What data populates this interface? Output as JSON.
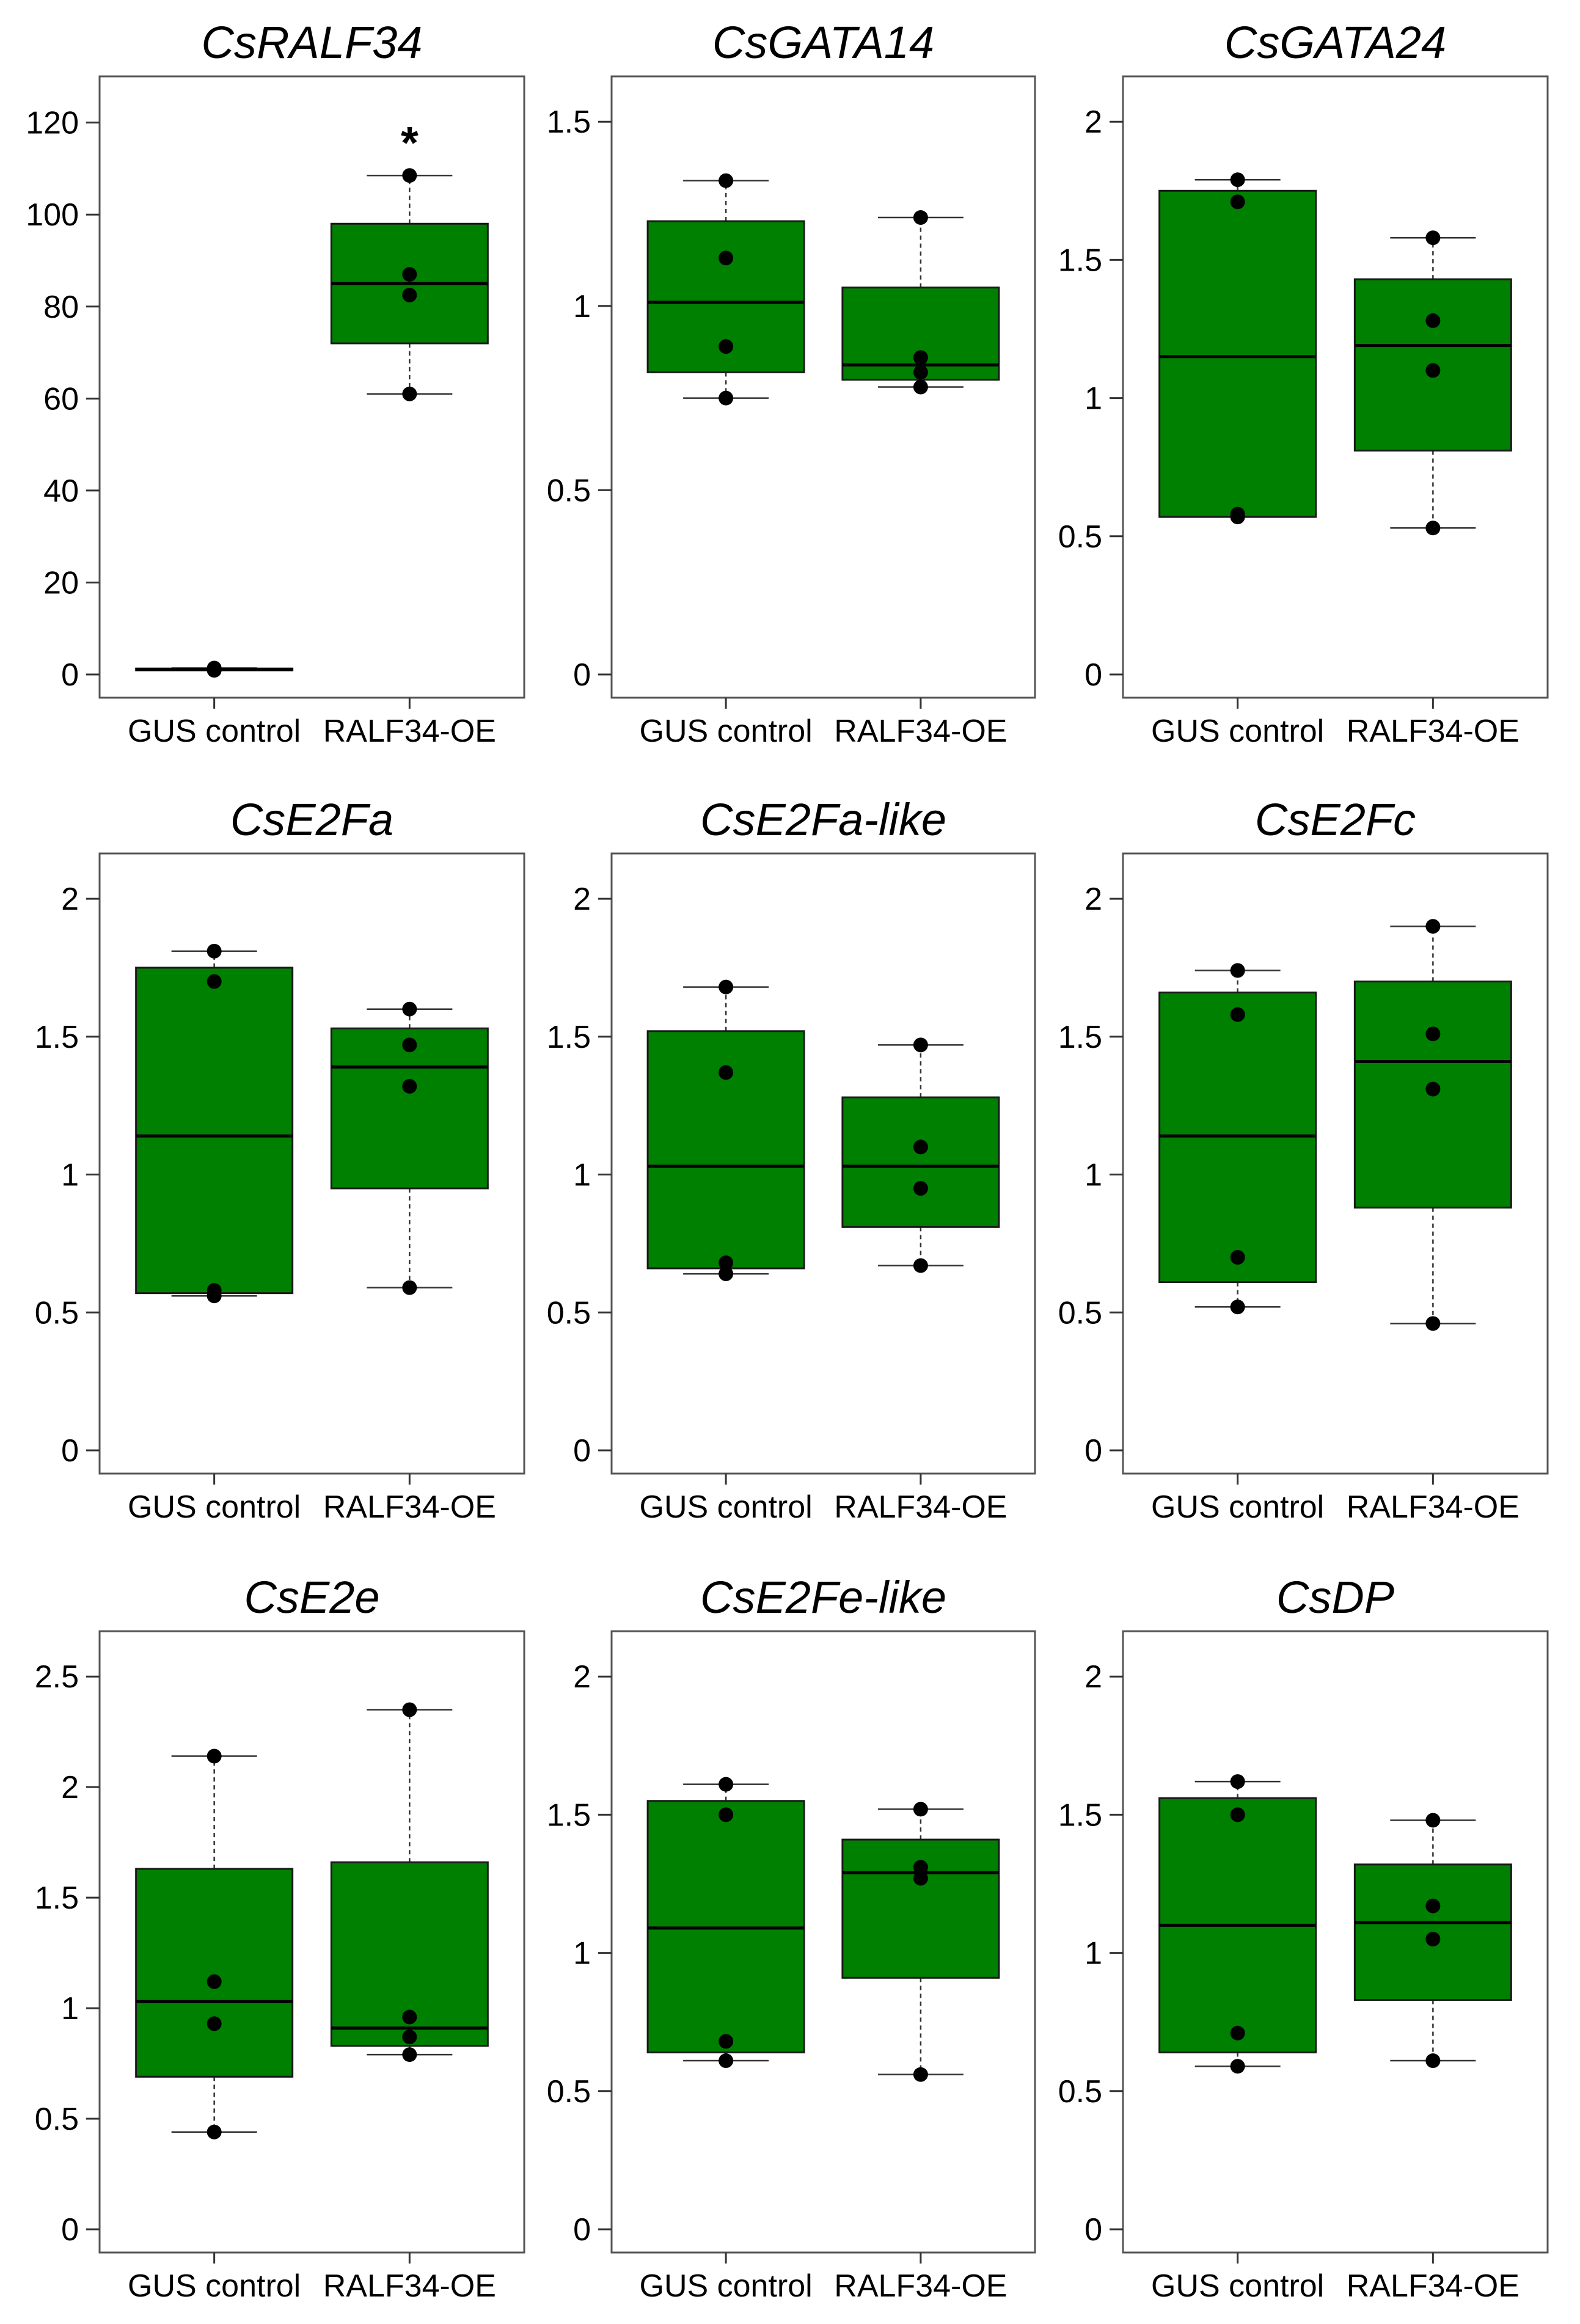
{
  "colors": {
    "box_fill": "#008000",
    "box_stroke": "#1a1a1a",
    "point": "#000000",
    "frame": "#555555"
  },
  "chart_data": [
    {
      "type": "box",
      "title": "CsRALF34",
      "categories": [
        "GUS control",
        "RALF34-OE"
      ],
      "ylim": [
        0,
        125
      ],
      "yticks": [
        0,
        20,
        40,
        60,
        80,
        100,
        120
      ],
      "yticklabels": [
        "0",
        "20",
        "40",
        "60",
        "80",
        "100",
        "120"
      ],
      "boxes": [
        {
          "whisker_low": 0.9,
          "q1": 0.9,
          "median": 1.1,
          "q3": 1.3,
          "whisker_high": 1.4,
          "points": [
            0.9,
            1.0,
            1.2,
            1.4
          ]
        },
        {
          "whisker_low": 61,
          "q1": 72,
          "median": 85,
          "q3": 98,
          "whisker_high": 108.5,
          "points": [
            61,
            82.5,
            87,
            108.5
          ]
        }
      ],
      "significance": {
        "index": 1,
        "label": "*"
      }
    },
    {
      "type": "box",
      "title": "CsGATA14",
      "categories": [
        "GUS control",
        "RALF34-OE"
      ],
      "ylim": [
        0,
        1.56
      ],
      "yticks": [
        0,
        0.5,
        1,
        1.5
      ],
      "yticklabels": [
        "0",
        "0.5",
        "1",
        "1.5"
      ],
      "boxes": [
        {
          "whisker_low": 0.75,
          "q1": 0.82,
          "median": 1.01,
          "q3": 1.23,
          "whisker_high": 1.34,
          "points": [
            0.75,
            0.89,
            1.13,
            1.34
          ]
        },
        {
          "whisker_low": 0.78,
          "q1": 0.8,
          "median": 0.84,
          "q3": 1.05,
          "whisker_high": 1.24,
          "points": [
            0.78,
            0.82,
            0.86,
            1.24
          ]
        }
      ]
    },
    {
      "type": "box",
      "title": "CsGATA24",
      "categories": [
        "GUS control",
        "RALF34-OE"
      ],
      "ylim": [
        0,
        2.08
      ],
      "yticks": [
        0,
        0.5,
        1,
        1.5,
        2
      ],
      "yticklabels": [
        "0",
        "0.5",
        "1",
        "1.5",
        "2"
      ],
      "boxes": [
        {
          "whisker_low": 0.57,
          "q1": 0.57,
          "median": 1.15,
          "q3": 1.75,
          "whisker_high": 1.79,
          "points": [
            0.57,
            0.58,
            1.71,
            1.79
          ]
        },
        {
          "whisker_low": 0.53,
          "q1": 0.81,
          "median": 1.19,
          "q3": 1.43,
          "whisker_high": 1.58,
          "points": [
            0.53,
            1.1,
            1.28,
            1.58
          ]
        }
      ]
    },
    {
      "type": "box",
      "title": "CsE2Fa",
      "categories": [
        "GUS control",
        "RALF34-OE"
      ],
      "ylim": [
        0,
        2.08
      ],
      "yticks": [
        0,
        0.5,
        1,
        1.5,
        2
      ],
      "yticklabels": [
        "0",
        "0.5",
        "1",
        "1.5",
        "2"
      ],
      "boxes": [
        {
          "whisker_low": 0.56,
          "q1": 0.57,
          "median": 1.14,
          "q3": 1.75,
          "whisker_high": 1.81,
          "points": [
            0.56,
            0.58,
            1.7,
            1.81
          ]
        },
        {
          "whisker_low": 0.59,
          "q1": 0.95,
          "median": 1.39,
          "q3": 1.53,
          "whisker_high": 1.6,
          "points": [
            0.59,
            1.32,
            1.47,
            1.6
          ]
        }
      ]
    },
    {
      "type": "box",
      "title": "CsE2Fa-like",
      "categories": [
        "GUS control",
        "RALF34-OE"
      ],
      "ylim": [
        0,
        2.08
      ],
      "yticks": [
        0,
        0.5,
        1,
        1.5,
        2
      ],
      "yticklabels": [
        "0",
        "0.5",
        "1",
        "1.5",
        "2"
      ],
      "boxes": [
        {
          "whisker_low": 0.64,
          "q1": 0.66,
          "median": 1.03,
          "q3": 1.52,
          "whisker_high": 1.68,
          "points": [
            0.64,
            0.68,
            1.37,
            1.68
          ]
        },
        {
          "whisker_low": 0.67,
          "q1": 0.81,
          "median": 1.03,
          "q3": 1.28,
          "whisker_high": 1.47,
          "points": [
            0.67,
            0.95,
            1.1,
            1.47
          ]
        }
      ]
    },
    {
      "type": "box",
      "title": "CsE2Fc",
      "categories": [
        "GUS control",
        "RALF34-OE"
      ],
      "ylim": [
        0,
        2.08
      ],
      "yticks": [
        0,
        0.5,
        1,
        1.5,
        2
      ],
      "yticklabels": [
        "0",
        "0.5",
        "1",
        "1.5",
        "2"
      ],
      "boxes": [
        {
          "whisker_low": 0.52,
          "q1": 0.61,
          "median": 1.14,
          "q3": 1.66,
          "whisker_high": 1.74,
          "points": [
            0.52,
            0.7,
            1.58,
            1.74
          ]
        },
        {
          "whisker_low": 0.46,
          "q1": 0.88,
          "median": 1.41,
          "q3": 1.7,
          "whisker_high": 1.9,
          "points": [
            0.46,
            1.31,
            1.51,
            1.9
          ]
        }
      ]
    },
    {
      "type": "box",
      "title": "CsE2e",
      "categories": [
        "GUS control",
        "RALF34-OE"
      ],
      "ylim": [
        0,
        2.6
      ],
      "yticks": [
        0,
        0.5,
        1,
        1.5,
        2,
        2.5
      ],
      "yticklabels": [
        "0",
        "0.5",
        "1",
        "1.5",
        "2",
        "2.5"
      ],
      "boxes": [
        {
          "whisker_low": 0.44,
          "q1": 0.69,
          "median": 1.03,
          "q3": 1.63,
          "whisker_high": 2.14,
          "points": [
            0.44,
            0.93,
            1.12,
            2.14
          ]
        },
        {
          "whisker_low": 0.79,
          "q1": 0.83,
          "median": 0.91,
          "q3": 1.66,
          "whisker_high": 2.35,
          "points": [
            0.79,
            0.87,
            0.96,
            2.35
          ]
        }
      ]
    },
    {
      "type": "box",
      "title": "CsE2Fe-like",
      "categories": [
        "GUS control",
        "RALF34-OE"
      ],
      "ylim": [
        0,
        2.08
      ],
      "yticks": [
        0,
        0.5,
        1,
        1.5,
        2
      ],
      "yticklabels": [
        "0",
        "0.5",
        "1",
        "1.5",
        "2"
      ],
      "boxes": [
        {
          "whisker_low": 0.61,
          "q1": 0.64,
          "median": 1.09,
          "q3": 1.55,
          "whisker_high": 1.61,
          "points": [
            0.61,
            0.68,
            1.5,
            1.61
          ]
        },
        {
          "whisker_low": 0.56,
          "q1": 0.91,
          "median": 1.29,
          "q3": 1.41,
          "whisker_high": 1.52,
          "points": [
            0.56,
            1.27,
            1.31,
            1.52
          ]
        }
      ]
    },
    {
      "type": "box",
      "title": "CsDP",
      "categories": [
        "GUS control",
        "RALF34-OE"
      ],
      "ylim": [
        0,
        2.08
      ],
      "yticks": [
        0,
        0.5,
        1,
        1.5,
        2
      ],
      "yticklabels": [
        "0",
        "0.5",
        "1",
        "1.5",
        "2"
      ],
      "boxes": [
        {
          "whisker_low": 0.59,
          "q1": 0.64,
          "median": 1.1,
          "q3": 1.56,
          "whisker_high": 1.62,
          "points": [
            0.59,
            0.71,
            1.5,
            1.62
          ]
        },
        {
          "whisker_low": 0.61,
          "q1": 0.83,
          "median": 1.11,
          "q3": 1.32,
          "whisker_high": 1.48,
          "points": [
            0.61,
            1.05,
            1.17,
            1.48
          ]
        }
      ]
    }
  ]
}
